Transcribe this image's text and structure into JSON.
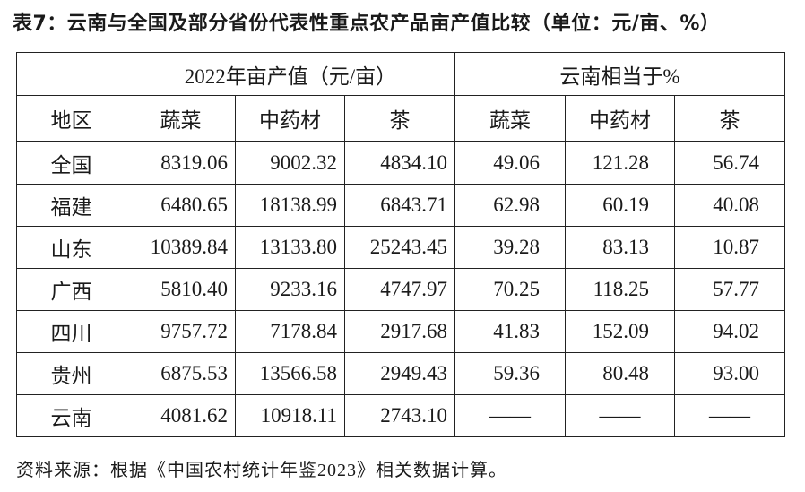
{
  "header": {
    "title": "表7：云南与全国及部分省份代表性重点农产品亩产值比较（单位：元/亩、%）"
  },
  "table": {
    "group_headers": [
      "2022年亩产值（元/亩）",
      "云南相当于%"
    ],
    "columns": [
      "地区",
      "蔬菜",
      "中药材",
      "茶",
      "蔬菜",
      "中药材",
      "茶"
    ],
    "rows": [
      [
        "全国",
        "8319.06",
        "9002.32",
        "4834.10",
        "49.06",
        "121.28",
        "56.74"
      ],
      [
        "福建",
        "6480.65",
        "18138.99",
        "6843.71",
        "62.98",
        "60.19",
        "40.08"
      ],
      [
        "山东",
        "10389.84",
        "13133.80",
        "25243.45",
        "39.28",
        "83.13",
        "10.87"
      ],
      [
        "广西",
        "5810.40",
        "9233.16",
        "4747.97",
        "70.25",
        "118.25",
        "57.77"
      ],
      [
        "四川",
        "9757.72",
        "7178.84",
        "2917.68",
        "41.83",
        "152.09",
        "94.02"
      ],
      [
        "贵州",
        "6875.53",
        "13566.58",
        "2949.43",
        "59.36",
        "80.48",
        "93.00"
      ],
      [
        "云南",
        "4081.62",
        "10918.11",
        "2743.10",
        "——",
        "——",
        "——"
      ]
    ]
  },
  "footer": {
    "source": "资料来源：根据《中国农村统计年鉴2023》相关数据计算。"
  }
}
